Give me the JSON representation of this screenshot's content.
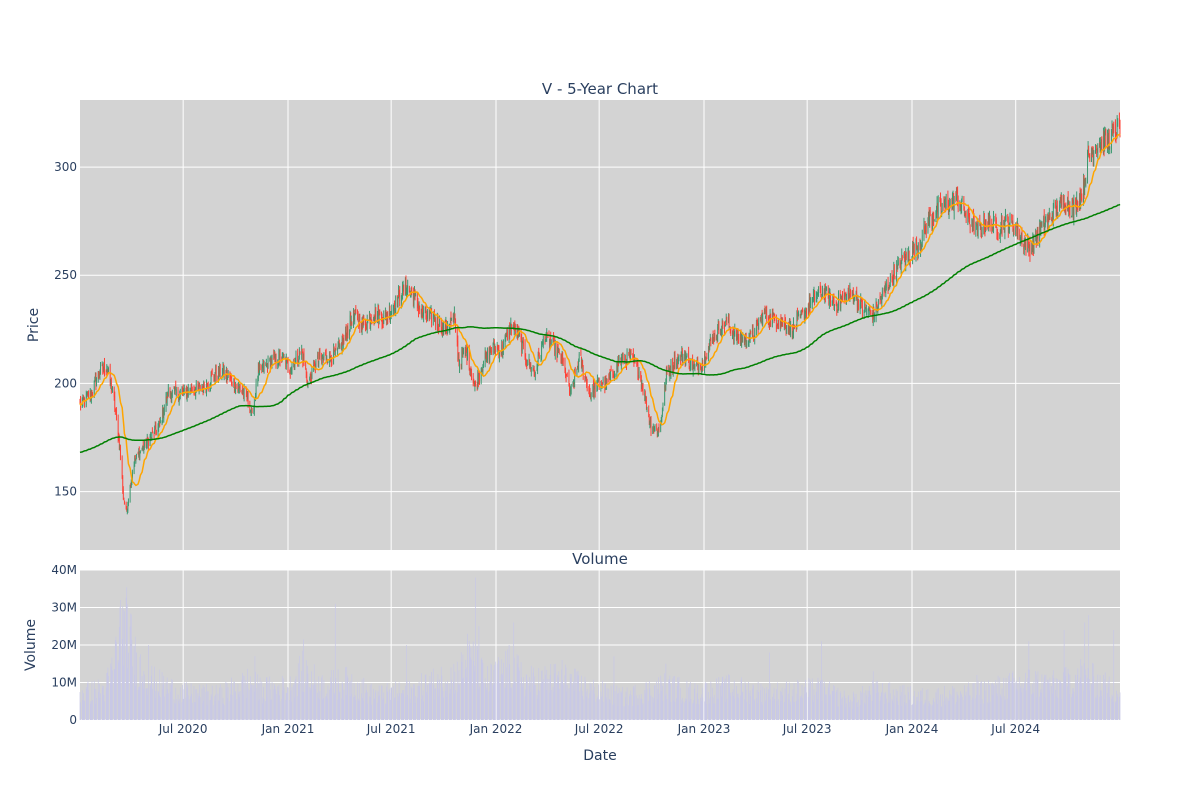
{
  "chart_data": {
    "type": "candlestick",
    "title": "V - 5-Year Chart",
    "price_panel": {
      "ylabel": "Price",
      "ylim": [
        123,
        331
      ],
      "yticks": [
        150,
        200,
        250,
        300
      ]
    },
    "volume_panel": {
      "title": "Volume",
      "ylabel": "Volume",
      "ylim": [
        0,
        40000000
      ],
      "yticks": [
        0,
        10000000,
        20000000,
        30000000,
        40000000
      ],
      "ytick_labels": [
        "0",
        "10M",
        "20M",
        "30M",
        "40M"
      ]
    },
    "xlabel": "Date",
    "x_range": [
      "2020-01-02",
      "2024-12-31"
    ],
    "x_ticks": [
      {
        "date": "2020-07-01",
        "label": "Jul 2020"
      },
      {
        "date": "2021-01-01",
        "label": "Jan 2021"
      },
      {
        "date": "2021-07-01",
        "label": "Jul 2021"
      },
      {
        "date": "2022-01-01",
        "label": "Jan 2022"
      },
      {
        "date": "2022-07-01",
        "label": "Jul 2022"
      },
      {
        "date": "2023-01-01",
        "label": "Jan 2023"
      },
      {
        "date": "2023-07-01",
        "label": "Jul 2023"
      },
      {
        "date": "2024-01-01",
        "label": "Jan 2024"
      },
      {
        "date": "2024-07-01",
        "label": "Jul 2024"
      }
    ],
    "series": [
      {
        "type": "candlestick",
        "increasing_color": "#3d9970",
        "decreasing_color": "#ff4136"
      },
      {
        "type": "line",
        "color": "#ffa500"
      },
      {
        "type": "line",
        "color": "#008000"
      },
      {
        "type": "bar",
        "color": "#c8c8e6"
      }
    ],
    "close_anchors": [
      [
        "2020-01-02",
        190
      ],
      [
        "2020-01-20",
        195
      ],
      [
        "2020-02-05",
        205
      ],
      [
        "2020-02-18",
        208
      ],
      [
        "2020-03-01",
        194
      ],
      [
        "2020-03-12",
        170
      ],
      [
        "2020-03-18",
        148
      ],
      [
        "2020-03-23",
        140
      ],
      [
        "2020-04-05",
        163
      ],
      [
        "2020-04-20",
        170
      ],
      [
        "2020-05-05",
        175
      ],
      [
        "2020-05-20",
        180
      ],
      [
        "2020-06-05",
        196
      ],
      [
        "2020-06-25",
        195
      ],
      [
        "2020-07-15",
        197
      ],
      [
        "2020-08-05",
        198
      ],
      [
        "2020-08-25",
        204
      ],
      [
        "2020-09-10",
        205
      ],
      [
        "2020-10-01",
        199
      ],
      [
        "2020-10-20",
        195
      ],
      [
        "2020-10-30",
        185
      ],
      [
        "2020-11-10",
        205
      ],
      [
        "2020-12-01",
        210
      ],
      [
        "2020-12-20",
        212
      ],
      [
        "2021-01-05",
        207
      ],
      [
        "2021-01-25",
        215
      ],
      [
        "2021-02-05",
        200
      ],
      [
        "2021-02-20",
        210
      ],
      [
        "2021-03-05",
        212
      ],
      [
        "2021-03-25",
        213
      ],
      [
        "2021-04-10",
        220
      ],
      [
        "2021-04-25",
        232
      ],
      [
        "2021-05-15",
        227
      ],
      [
        "2021-06-01",
        232
      ],
      [
        "2021-06-20",
        230
      ],
      [
        "2021-07-10",
        238
      ],
      [
        "2021-07-28",
        245
      ],
      [
        "2021-08-10",
        240
      ],
      [
        "2021-08-25",
        232
      ],
      [
        "2021-09-15",
        230
      ],
      [
        "2021-10-01",
        225
      ],
      [
        "2021-10-20",
        230
      ],
      [
        "2021-10-28",
        210
      ],
      [
        "2021-11-10",
        215
      ],
      [
        "2021-11-25",
        198
      ],
      [
        "2021-12-10",
        210
      ],
      [
        "2021-12-28",
        217
      ],
      [
        "2022-01-10",
        215
      ],
      [
        "2022-01-28",
        227
      ],
      [
        "2022-02-10",
        222
      ],
      [
        "2022-02-25",
        210
      ],
      [
        "2022-03-10",
        205
      ],
      [
        "2022-03-28",
        222
      ],
      [
        "2022-04-10",
        218
      ],
      [
        "2022-04-28",
        210
      ],
      [
        "2022-05-12",
        195
      ],
      [
        "2022-05-28",
        212
      ],
      [
        "2022-06-15",
        195
      ],
      [
        "2022-06-30",
        200
      ],
      [
        "2022-07-15",
        200
      ],
      [
        "2022-08-05",
        210
      ],
      [
        "2022-08-25",
        212
      ],
      [
        "2022-09-10",
        205
      ],
      [
        "2022-09-30",
        180
      ],
      [
        "2022-10-15",
        178
      ],
      [
        "2022-10-28",
        205
      ],
      [
        "2022-11-10",
        210
      ],
      [
        "2022-11-28",
        213
      ],
      [
        "2022-12-15",
        207
      ],
      [
        "2022-12-30",
        210
      ],
      [
        "2023-01-15",
        220
      ],
      [
        "2023-01-30",
        226
      ],
      [
        "2023-02-10",
        228
      ],
      [
        "2023-02-25",
        222
      ],
      [
        "2023-03-15",
        220
      ],
      [
        "2023-03-30",
        223
      ],
      [
        "2023-04-15",
        232
      ],
      [
        "2023-05-01",
        230
      ],
      [
        "2023-05-20",
        228
      ],
      [
        "2023-06-05",
        225
      ],
      [
        "2023-06-25",
        232
      ],
      [
        "2023-07-15",
        240
      ],
      [
        "2023-08-01",
        242
      ],
      [
        "2023-08-20",
        236
      ],
      [
        "2023-09-05",
        240
      ],
      [
        "2023-09-20",
        242
      ],
      [
        "2023-10-05",
        235
      ],
      [
        "2023-10-25",
        232
      ],
      [
        "2023-11-05",
        238
      ],
      [
        "2023-11-25",
        248
      ],
      [
        "2023-12-15",
        257
      ],
      [
        "2023-12-30",
        260
      ],
      [
        "2024-01-15",
        265
      ],
      [
        "2024-01-30",
        275
      ],
      [
        "2024-02-15",
        280
      ],
      [
        "2024-03-01",
        282
      ],
      [
        "2024-03-20",
        285
      ],
      [
        "2024-04-05",
        278
      ],
      [
        "2024-04-25",
        270
      ],
      [
        "2024-05-10",
        275
      ],
      [
        "2024-05-30",
        272
      ],
      [
        "2024-06-15",
        275
      ],
      [
        "2024-07-01",
        272
      ],
      [
        "2024-07-15",
        265
      ],
      [
        "2024-07-28",
        262
      ],
      [
        "2024-08-10",
        270
      ],
      [
        "2024-08-25",
        275
      ],
      [
        "2024-09-10",
        280
      ],
      [
        "2024-09-25",
        285
      ],
      [
        "2024-10-10",
        280
      ],
      [
        "2024-10-28",
        290
      ],
      [
        "2024-11-05",
        305
      ],
      [
        "2024-11-20",
        310
      ],
      [
        "2024-12-05",
        312
      ],
      [
        "2024-12-20",
        315
      ],
      [
        "2024-12-31",
        318
      ]
    ],
    "volume_profile": [
      [
        "2020-01-02",
        7000000
      ],
      [
        "2020-02-15",
        8000000
      ],
      [
        "2020-03-01",
        14000000
      ],
      [
        "2020-03-10",
        22000000
      ],
      [
        "2020-03-20",
        27000000
      ],
      [
        "2020-04-10",
        15000000
      ],
      [
        "2020-05-10",
        10000000
      ],
      [
        "2020-07-01",
        7000000
      ],
      [
        "2020-09-01",
        6500000
      ],
      [
        "2020-10-25",
        10000000
      ],
      [
        "2020-11-15",
        8000000
      ],
      [
        "2021-01-05",
        8500000
      ],
      [
        "2021-01-25",
        13000000
      ],
      [
        "2021-03-01",
        9000000
      ],
      [
        "2021-04-20",
        10000000
      ],
      [
        "2021-06-01",
        6500000
      ],
      [
        "2021-08-01",
        7500000
      ],
      [
        "2021-10-25",
        12000000
      ],
      [
        "2021-11-20",
        16000000
      ],
      [
        "2021-12-15",
        10000000
      ],
      [
        "2022-01-25",
        14000000
      ],
      [
        "2022-02-25",
        10000000
      ],
      [
        "2022-04-25",
        11000000
      ],
      [
        "2022-06-15",
        8000000
      ],
      [
        "2022-08-15",
        6000000
      ],
      [
        "2022-10-25",
        9000000
      ],
      [
        "2022-12-15",
        7000000
      ],
      [
        "2023-02-15",
        8500000
      ],
      [
        "2023-04-25",
        7000000
      ],
      [
        "2023-07-25",
        8000000
      ],
      [
        "2023-09-15",
        5000000
      ],
      [
        "2023-10-25",
        7500000
      ],
      [
        "2024-01-15",
        6000000
      ],
      [
        "2024-04-15",
        7000000
      ],
      [
        "2024-07-25",
        10000000
      ],
      [
        "2024-09-15",
        9000000
      ],
      [
        "2024-10-25",
        12000000
      ],
      [
        "2024-12-31",
        7000000
      ]
    ],
    "volume_spikes": [
      [
        "2020-03-13",
        32000000
      ],
      [
        "2020-03-20",
        29000000
      ],
      [
        "2020-05-01",
        20000000
      ],
      [
        "2020-11-04",
        17000000
      ],
      [
        "2021-01-28",
        21500000
      ],
      [
        "2021-03-25",
        31000000
      ],
      [
        "2021-07-28",
        20000000
      ],
      [
        "2021-11-12",
        23000000
      ],
      [
        "2021-11-26",
        38000000
      ],
      [
        "2021-12-02",
        25000000
      ],
      [
        "2022-02-01",
        26000000
      ],
      [
        "2022-04-27",
        16000000
      ],
      [
        "2022-07-27",
        17000000
      ],
      [
        "2022-10-26",
        15000000
      ],
      [
        "2023-02-07",
        11000000
      ],
      [
        "2023-04-26",
        18000000
      ],
      [
        "2023-07-26",
        21000000
      ],
      [
        "2023-10-25",
        13000000
      ],
      [
        "2024-01-26",
        8000000
      ],
      [
        "2024-04-24",
        12000000
      ],
      [
        "2024-07-24",
        21000000
      ],
      [
        "2024-09-24",
        24000000
      ],
      [
        "2024-10-30",
        26000000
      ],
      [
        "2024-11-06",
        28000000
      ],
      [
        "2024-12-20",
        24000000
      ]
    ]
  }
}
